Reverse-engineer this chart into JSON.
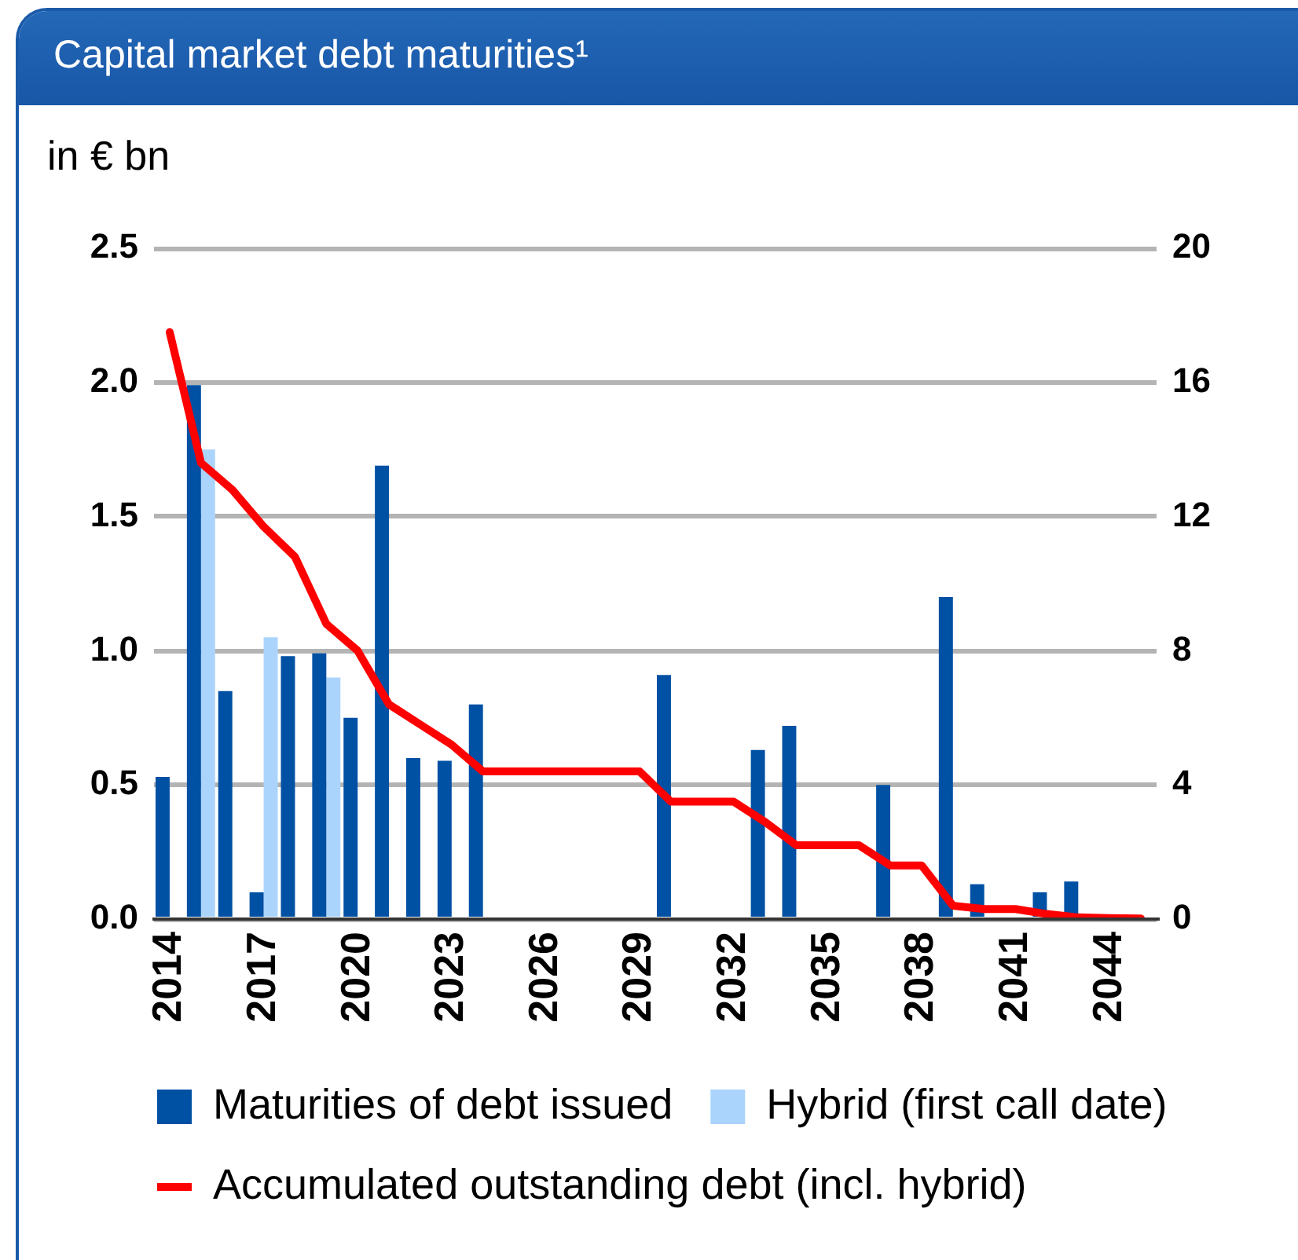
{
  "chart_data": {
    "type": "bar",
    "title": "Capital market debt maturities¹",
    "ylabel": "in € bn",
    "categories": [
      "2014",
      null,
      null,
      "2017",
      null,
      null,
      "2020",
      null,
      null,
      "2023",
      null,
      null,
      "2026",
      null,
      null,
      "2029",
      null,
      null,
      "2032",
      null,
      null,
      "2035",
      null,
      null,
      "2038",
      null,
      null,
      "2041",
      null,
      null,
      "2044",
      null
    ],
    "series": [
      {
        "name": "Maturities of debt issued",
        "color": "#0050a4",
        "values": [
          0.53,
          1.99,
          0.85,
          0.1,
          0.98,
          0.99,
          0.75,
          1.69,
          0.6,
          0.59,
          0.8,
          null,
          null,
          null,
          null,
          null,
          0.91,
          null,
          null,
          0.63,
          0.72,
          null,
          null,
          0.5,
          null,
          1.2,
          0.13,
          null,
          0.1,
          0.14,
          null,
          null
        ]
      },
      {
        "name": "Hybrid (first call date)",
        "color": "#aad4fb",
        "values": [
          null,
          1.75,
          null,
          1.05,
          null,
          0.9,
          null,
          null,
          null,
          null,
          null,
          null,
          null,
          null,
          null,
          null,
          null,
          null,
          null,
          null,
          null,
          null,
          null,
          null,
          null,
          null,
          null,
          null,
          null,
          null,
          null,
          null
        ]
      },
      {
        "name": "Accumulated outstanding debt (incl. hybrid)",
        "type": "line",
        "axis": "y2",
        "color": "#ff0000",
        "values": [
          17.5,
          13.6,
          12.8,
          11.7,
          10.8,
          8.8,
          8.0,
          6.4,
          5.8,
          5.2,
          4.4,
          4.4,
          4.4,
          4.4,
          4.4,
          4.4,
          3.5,
          3.5,
          3.5,
          2.9,
          2.2,
          2.2,
          2.2,
          1.6,
          1.6,
          0.4,
          0.3,
          0.3,
          0.15,
          0.05,
          0.03,
          0.02
        ]
      }
    ],
    "ylim": [
      0,
      2.5
    ],
    "yticks": [
      {
        "value": 0,
        "label": "0.0"
      },
      {
        "value": 0.5,
        "label": "0.5"
      },
      {
        "value": 1,
        "label": "1.0"
      },
      {
        "value": 1.5,
        "label": "1.5"
      },
      {
        "value": 2,
        "label": "2.0"
      },
      {
        "value": 2.5,
        "label": "2.5"
      }
    ],
    "y2lim": [
      0,
      20
    ],
    "y2ticks": [
      0,
      4,
      8,
      12,
      16,
      20
    ],
    "grid": "y",
    "legend": "bottom",
    "marker": "none",
    "line_style": "solid"
  }
}
